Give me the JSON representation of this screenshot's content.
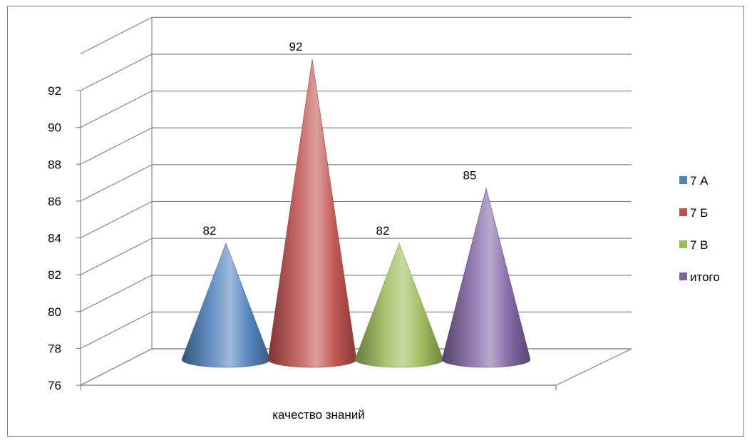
{
  "chart_data": {
    "type": "bar",
    "style": "3d-cone",
    "categories": [
      "качество знаний"
    ],
    "series": [
      {
        "name": "7 А",
        "values": [
          82
        ],
        "color": "#4f81bd"
      },
      {
        "name": "7 Б",
        "values": [
          92
        ],
        "color": "#c0504d"
      },
      {
        "name": "7 В",
        "values": [
          82
        ],
        "color": "#9bbb59"
      },
      {
        "name": "итого",
        "values": [
          85
        ],
        "color": "#8064a2"
      }
    ],
    "data_labels": [
      "82",
      "92",
      "82",
      "85"
    ],
    "ylim": [
      76,
      92
    ],
    "yticks": [
      "76",
      "78",
      "80",
      "82",
      "84",
      "86",
      "88",
      "90",
      "92"
    ],
    "grid": true,
    "legend": "right"
  }
}
